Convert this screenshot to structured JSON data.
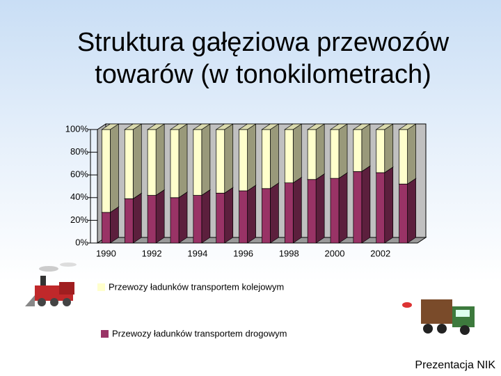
{
  "chart_data": {
    "type": "bar3d_stacked",
    "title": "Struktura gałęziowa przewozów towarów (w tonokilometrach)",
    "categories": [
      "1990",
      null,
      "1992",
      null,
      "1994",
      null,
      "1996",
      null,
      "1998",
      null,
      "2000",
      null,
      "2002",
      null
    ],
    "series": [
      {
        "name": "Przewozy ładunków transportem kolejowym",
        "color": "#ffffcc",
        "values": [
          73,
          61,
          58,
          60,
          58,
          56,
          54,
          52,
          47,
          44,
          43,
          37,
          38,
          48
        ]
      },
      {
        "name": "Przewozy ładunków transportem drogowym",
        "color": "#993366",
        "values": [
          27,
          39,
          42,
          40,
          42,
          44,
          46,
          48,
          53,
          56,
          57,
          63,
          62,
          52
        ]
      }
    ],
    "ylim": [
      0,
      100
    ],
    "yticks": [
      {
        "value": 0,
        "label": "0%"
      },
      {
        "value": 20,
        "label": "20%"
      },
      {
        "value": 40,
        "label": "40%"
      },
      {
        "value": 60,
        "label": "60%"
      },
      {
        "value": 80,
        "label": "80%"
      },
      {
        "value": 100,
        "label": "100%"
      }
    ],
    "grid": false,
    "footer": "Prezentacja NIK"
  }
}
